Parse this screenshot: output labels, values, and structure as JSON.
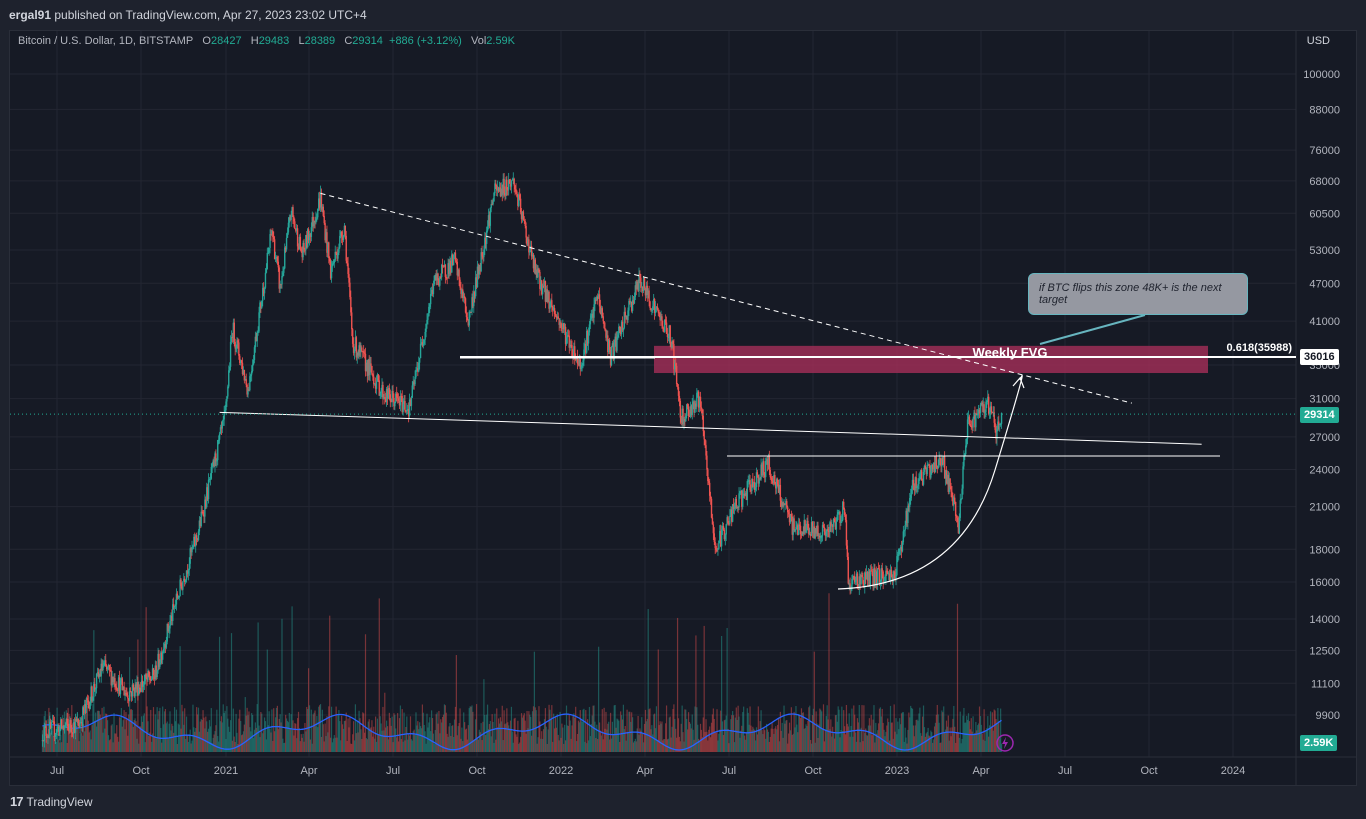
{
  "header": {
    "author": "ergal91",
    "text": "published on TradingView.com, Apr 27, 2023 23:02 UTC+4"
  },
  "legend": {
    "symbol": "Bitcoin / U.S. Dollar, 1D, BITSTAMP",
    "o_label": "O",
    "o": "28427",
    "h_label": "H",
    "h": "29483",
    "l_label": "L",
    "l": "28389",
    "c_label": "C",
    "c": "29314",
    "change": "+886 (+3.12%)",
    "vol_label": "Vol",
    "vol": "2.59K"
  },
  "currency": "USD",
  "footer": {
    "brand": "TradingView",
    "logo": "17"
  },
  "annotations": {
    "fvg_label": "Weekly FVG",
    "fib_label": "0.618(35988)",
    "callout": "if BTC flips this zone 48K+ is the next target"
  },
  "price_tags": {
    "level": "36016",
    "last": "29314",
    "volume": "2.59K"
  },
  "colors": {
    "up": "#26a69a",
    "down": "#ef5350",
    "fvg": "#9c2e56",
    "volume_ma": "#2962ff"
  },
  "chart_data": {
    "type": "candlestick",
    "title": "Bitcoin / U.S. Dollar, 1D, BITSTAMP",
    "scale": "log",
    "y_ticks": [
      9900,
      11100,
      12500,
      14000,
      16000,
      18000,
      21000,
      24000,
      27000,
      31000,
      35000,
      41000,
      47000,
      53000,
      60500,
      68000,
      76000,
      88000,
      100000
    ],
    "x_ticks": [
      "Jul",
      "Oct",
      "2021",
      "Apr",
      "Jul",
      "Oct",
      "2022",
      "Apr",
      "Jul",
      "Oct",
      "2023",
      "Apr",
      "Jul",
      "Oct",
      "2024"
    ],
    "price_path": [
      [
        "2020-06-15",
        9300
      ],
      [
        "2020-07-25",
        9600
      ],
      [
        "2020-08-20",
        11800
      ],
      [
        "2020-09-15",
        10700
      ],
      [
        "2020-10-15",
        11400
      ],
      [
        "2020-11-10",
        15300
      ],
      [
        "2020-12-01",
        19000
      ],
      [
        "2020-12-31",
        29000
      ],
      [
        "2021-01-08",
        40000
      ],
      [
        "2021-01-25",
        32000
      ],
      [
        "2021-02-20",
        57000
      ],
      [
        "2021-03-01",
        46000
      ],
      [
        "2021-03-13",
        61000
      ],
      [
        "2021-03-25",
        52000
      ],
      [
        "2021-04-14",
        64000
      ],
      [
        "2021-04-25",
        49000
      ],
      [
        "2021-05-10",
        58000
      ],
      [
        "2021-05-19",
        38000
      ],
      [
        "2021-06-22",
        31500
      ],
      [
        "2021-07-20",
        30000
      ],
      [
        "2021-08-15",
        47000
      ],
      [
        "2021-09-07",
        51000
      ],
      [
        "2021-09-22",
        41000
      ],
      [
        "2021-10-20",
        65000
      ],
      [
        "2021-11-10",
        68000
      ],
      [
        "2021-12-04",
        49000
      ],
      [
        "2022-01-22",
        35000
      ],
      [
        "2022-02-10",
        45000
      ],
      [
        "2022-02-24",
        36000
      ],
      [
        "2022-03-28",
        47500
      ],
      [
        "2022-05-01",
        38500
      ],
      [
        "2022-05-12",
        29000
      ],
      [
        "2022-06-01",
        31000
      ],
      [
        "2022-06-18",
        18000
      ],
      [
        "2022-07-10",
        21000
      ],
      [
        "2022-08-14",
        24500
      ],
      [
        "2022-09-10",
        19500
      ],
      [
        "2022-10-20",
        19100
      ],
      [
        "2022-11-06",
        21000
      ],
      [
        "2022-11-10",
        16000
      ],
      [
        "2022-12-31",
        16500
      ],
      [
        "2023-01-20",
        22800
      ],
      [
        "2023-02-20",
        25000
      ],
      [
        "2023-03-10",
        19600
      ],
      [
        "2023-03-20",
        28200
      ],
      [
        "2023-04-14",
        30500
      ],
      [
        "2023-04-20",
        27200
      ],
      [
        "2023-04-27",
        29314
      ]
    ],
    "levels": {
      "weekly_fvg_low": 34000,
      "weekly_fvg_high": 37500,
      "fib_0_618": 35988,
      "horizontal_level": 36016,
      "support": 25200
    },
    "trendlines": [
      {
        "name": "descending resistance",
        "from": [
          "2021-04-14",
          65000
        ],
        "to": [
          "2023-09-15",
          30500
        ],
        "style": "dashed"
      },
      {
        "name": "long support",
        "from": [
          "2020-12-25",
          29500
        ],
        "to": [
          "2023-11-30",
          26300
        ],
        "style": "solid"
      }
    ],
    "volume_last": "2.59K"
  }
}
